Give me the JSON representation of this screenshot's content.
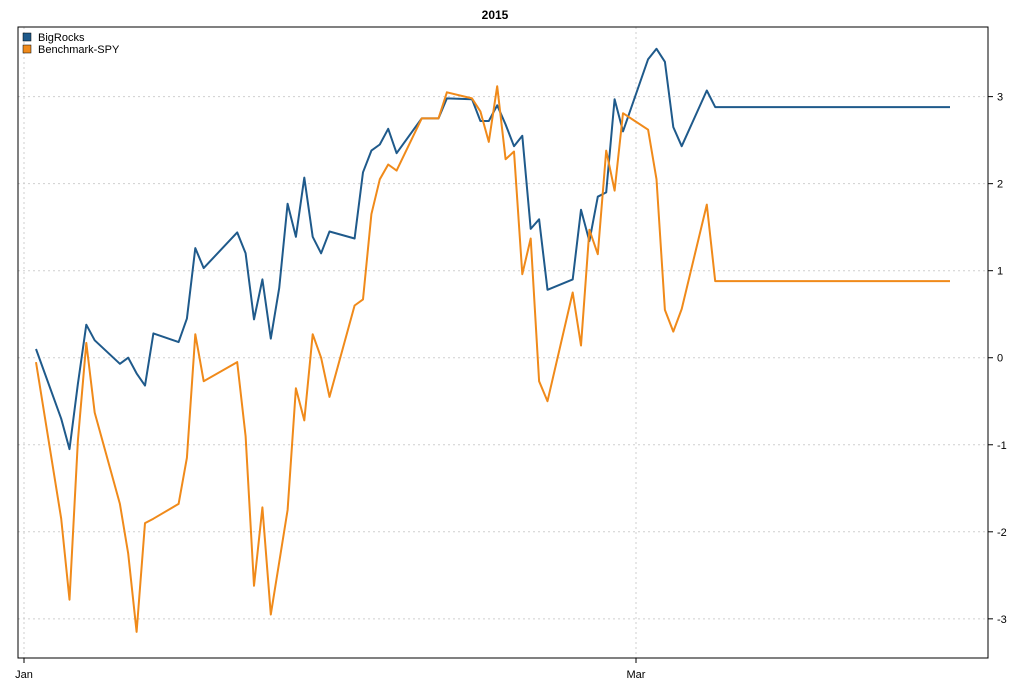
{
  "chart_data": {
    "type": "line",
    "title": "2015",
    "xlabel": "",
    "ylabel": "",
    "x_ticks": [
      "Jan",
      "Mar"
    ],
    "ylim": [
      -3.45,
      3.8
    ],
    "y_ticks": [
      -3,
      -2,
      -1,
      0,
      1,
      2,
      3
    ],
    "y_axis_side": "right",
    "grid": true,
    "legend_position": "top-left",
    "series": [
      {
        "name": "BigRocks",
        "color": "#1f5a8b",
        "x": [
          0,
          3,
          4,
          5,
          6,
          7,
          10,
          11,
          12,
          13,
          14,
          17,
          18,
          19,
          20,
          24,
          25,
          26,
          27,
          28,
          29,
          30,
          31,
          32,
          33,
          34,
          35,
          38,
          39,
          40,
          41,
          42,
          43,
          46,
          47,
          48,
          49,
          52,
          53,
          54,
          55,
          56,
          57,
          58,
          59,
          60,
          61,
          64,
          65,
          66,
          67,
          68,
          69,
          70,
          73,
          74,
          75,
          76,
          77,
          80,
          81,
          82,
          83,
          84,
          85,
          86,
          87,
          91,
          92,
          95,
          96,
          97,
          98,
          102,
          103,
          104,
          105,
          106,
          109
        ],
        "y": [
          0.1,
          -0.7,
          -1.05,
          -0.3,
          0.38,
          0.2,
          -0.07,
          0.0,
          -0.18,
          -0.32,
          0.28,
          0.18,
          0.45,
          1.26,
          1.03,
          1.44,
          1.2,
          0.44,
          0.9,
          0.22,
          0.8,
          1.77,
          1.39,
          2.07,
          1.39,
          1.2,
          1.45,
          1.37,
          2.13,
          2.38,
          2.45,
          2.63,
          2.35,
          2.75,
          2.75,
          2.75,
          2.98,
          2.97,
          2.72,
          2.72,
          2.9,
          2.68,
          2.43,
          2.55,
          1.48,
          1.59,
          0.78,
          0.9,
          1.7,
          1.34,
          1.85,
          1.9,
          2.97,
          2.6,
          3.43,
          3.55,
          3.4,
          2.65,
          2.43,
          3.07,
          2.88,
          2.88,
          2.88,
          2.88,
          2.88,
          2.88,
          2.88,
          2.88,
          2.88,
          2.88,
          2.88,
          2.88,
          2.88,
          2.88,
          2.88,
          2.88,
          2.88,
          2.88,
          2.88
        ]
      },
      {
        "name": "Benchmark-SPY",
        "color": "#f08a1a",
        "x": [
          0,
          3,
          4,
          5,
          6,
          7,
          10,
          11,
          12,
          13,
          14,
          17,
          18,
          19,
          20,
          24,
          25,
          26,
          27,
          28,
          29,
          30,
          31,
          32,
          33,
          34,
          35,
          38,
          39,
          40,
          41,
          42,
          43,
          46,
          47,
          48,
          49,
          52,
          53,
          54,
          55,
          56,
          57,
          58,
          59,
          60,
          61,
          64,
          65,
          66,
          67,
          68,
          69,
          70,
          73,
          74,
          75,
          76,
          77,
          80,
          81,
          82,
          83,
          84,
          85,
          86,
          87,
          91,
          92,
          95,
          96,
          97,
          98,
          102,
          103,
          104,
          105,
          106,
          109
        ],
        "y": [
          -0.05,
          -1.85,
          -2.78,
          -0.95,
          0.17,
          -0.63,
          -1.68,
          -2.25,
          -3.15,
          -1.9,
          -1.85,
          -1.68,
          -1.15,
          0.27,
          -0.27,
          -0.05,
          -0.9,
          -2.62,
          -1.72,
          -2.95,
          -2.35,
          -1.75,
          -0.35,
          -0.72,
          0.27,
          0.0,
          -0.45,
          0.6,
          0.67,
          1.65,
          2.05,
          2.22,
          2.15,
          2.75,
          2.75,
          2.75,
          3.05,
          2.98,
          2.83,
          2.48,
          3.12,
          2.28,
          2.37,
          0.96,
          1.37,
          -0.27,
          -0.5,
          0.75,
          0.14,
          1.47,
          1.19,
          2.38,
          1.92,
          2.81,
          2.62,
          2.05,
          0.55,
          0.3,
          0.56,
          1.76,
          0.88,
          0.88,
          0.88,
          0.88,
          0.88,
          0.88,
          0.88,
          0.88,
          0.88,
          0.88,
          0.88,
          0.88,
          0.88,
          0.88,
          0.88,
          0.88,
          0.88,
          0.88,
          0.88
        ]
      }
    ]
  }
}
